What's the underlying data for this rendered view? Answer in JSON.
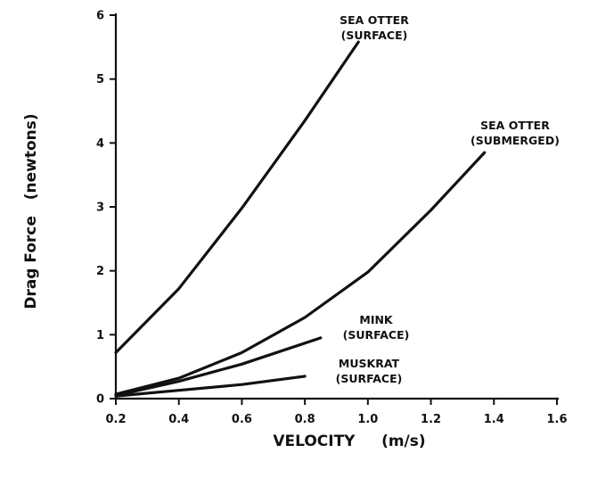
{
  "chart_data": {
    "type": "line",
    "title": "",
    "xlabel": "VELOCITY     (m/s)",
    "ylabel": "Drag Force   (newtons)",
    "xlim": [
      0.2,
      1.6
    ],
    "ylim": [
      0,
      6
    ],
    "grid": false,
    "x_ticks": [
      0.2,
      0.4,
      0.6,
      0.8,
      1.0,
      1.2,
      1.4,
      1.6
    ],
    "x_tick_labels": [
      "0.2",
      "0.4",
      "0.6",
      "0.8",
      "1.0",
      "1.2",
      "1.4",
      "1.6"
    ],
    "y_ticks": [
      0,
      1,
      2,
      3,
      4,
      5,
      6
    ],
    "y_tick_labels": [
      "0",
      "1",
      "2",
      "3",
      "4",
      "5",
      "6"
    ],
    "series": [
      {
        "name": "SEA OTTER (SURFACE)",
        "label_lines": [
          "SEA OTTER",
          "(SURFACE)"
        ],
        "x": [
          0.2,
          0.4,
          0.6,
          0.8,
          0.97
        ],
        "y": [
          0.72,
          1.72,
          2.98,
          4.35,
          5.58
        ]
      },
      {
        "name": "SEA OTTER (SUBMERGED)",
        "label_lines": [
          "SEA OTTER",
          "(SUBMERGED)"
        ],
        "x": [
          0.2,
          0.4,
          0.6,
          0.8,
          1.0,
          1.2,
          1.37
        ],
        "y": [
          0.07,
          0.32,
          0.72,
          1.27,
          1.98,
          2.95,
          3.85
        ]
      },
      {
        "name": "MINK (SURFACE)",
        "label_lines": [
          "MINK",
          "(SURFACE)"
        ],
        "x": [
          0.2,
          0.4,
          0.6,
          0.85
        ],
        "y": [
          0.05,
          0.27,
          0.54,
          0.95
        ]
      },
      {
        "name": "MUSKRAT (SURFACE)",
        "label_lines": [
          "MUSKRAT",
          "(SURFACE)"
        ],
        "x": [
          0.2,
          0.4,
          0.6,
          0.8
        ],
        "y": [
          0.04,
          0.13,
          0.22,
          0.35
        ]
      }
    ]
  }
}
